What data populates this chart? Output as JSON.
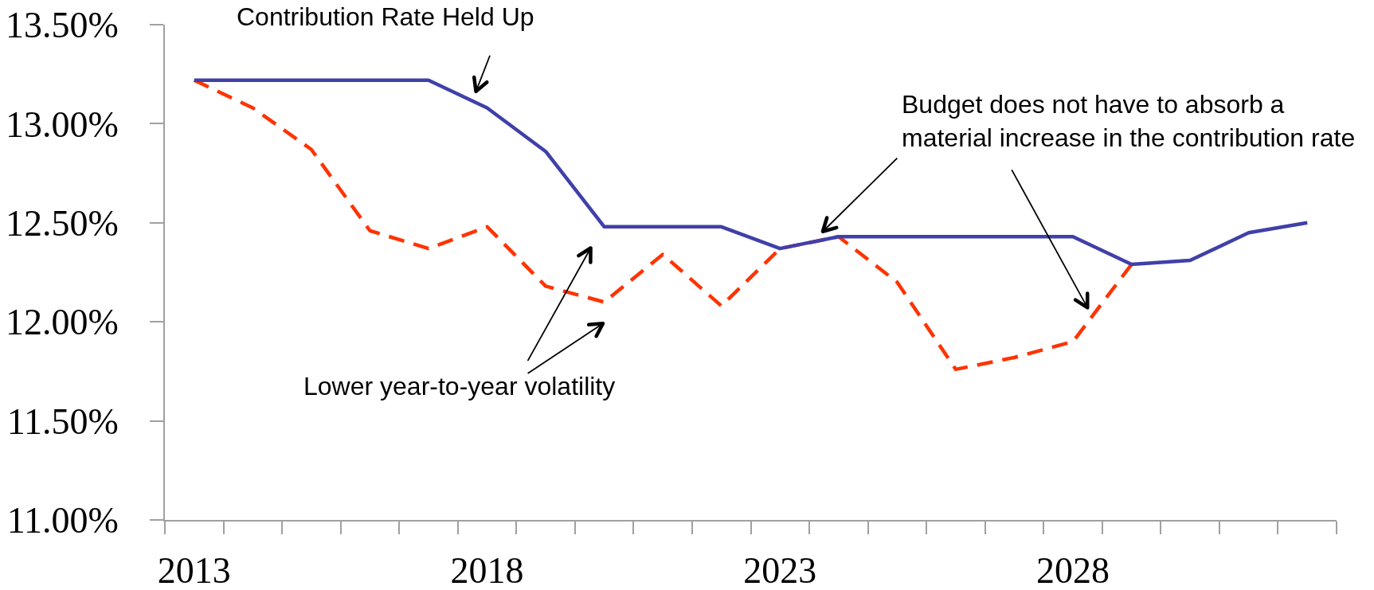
{
  "chart_data": {
    "type": "line",
    "annotations": [
      "Contribution Rate Held Up",
      "Budget does not have to absorb a\nmaterial increase in the contribution rate",
      "Lower year-to-year volatility"
    ],
    "categories": [
      "2013",
      null,
      null,
      null,
      null,
      "2018",
      null,
      null,
      null,
      null,
      "2023",
      null,
      null,
      null,
      null,
      "2028",
      null,
      null,
      null,
      null
    ],
    "series": [
      {
        "color": "#ff3300",
        "line_style": "dashed",
        "values": [
          13.22,
          13.08,
          12.87,
          12.46,
          12.37,
          12.48,
          12.18,
          12.1,
          12.34,
          12.08,
          12.37,
          12.43,
          12.2,
          11.76,
          11.82,
          11.9,
          12.29,
          null,
          null,
          null
        ]
      },
      {
        "color": "#4040aa",
        "line_style": "solid",
        "values": [
          13.22,
          13.22,
          13.22,
          13.22,
          13.22,
          13.08,
          12.86,
          12.48,
          12.48,
          12.48,
          12.37,
          12.43,
          12.43,
          12.43,
          12.43,
          12.43,
          12.29,
          12.31,
          12.45,
          12.5
        ]
      }
    ],
    "ylim": [
      11,
      13.5
    ],
    "yticks": [
      {
        "value": 11,
        "label": "11.00%"
      },
      {
        "value": 11.5,
        "label": "11.50%"
      },
      {
        "value": 12,
        "label": "12.00%"
      },
      {
        "value": 12.5,
        "label": "12.50%"
      },
      {
        "value": 13,
        "label": "13.00%"
      },
      {
        "value": 13.5,
        "label": "13.50%"
      }
    ]
  }
}
